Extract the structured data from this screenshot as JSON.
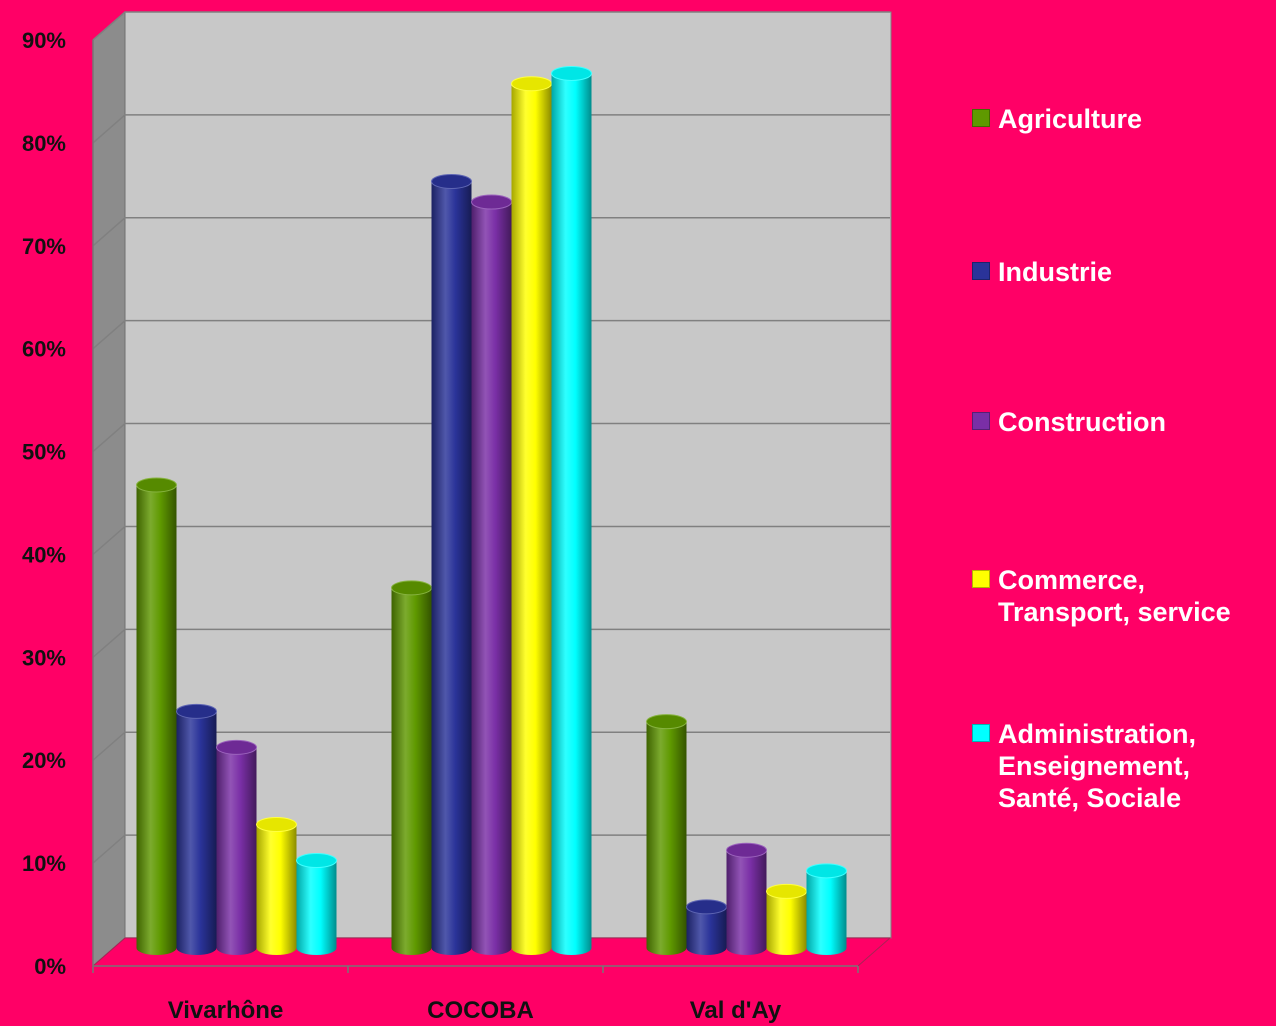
{
  "chart_data": {
    "type": "bar",
    "title": "",
    "xlabel": "",
    "ylabel": "",
    "ylim": [
      0,
      90
    ],
    "yticks": [
      "0%",
      "10%",
      "20%",
      "30%",
      "40%",
      "50%",
      "60%",
      "70%",
      "80%",
      "90%"
    ],
    "categories": [
      "Vivarhône",
      "COCOBA",
      "Val d'Ay"
    ],
    "series": [
      {
        "name": "Agriculture",
        "color": "#5f9900",
        "values": [
          45,
          35,
          22
        ]
      },
      {
        "name": "Industrie",
        "color": "#2a3399",
        "values": [
          23,
          74.5,
          4
        ]
      },
      {
        "name": "Construction",
        "color": "#7a2fa6",
        "values": [
          19.5,
          72.5,
          9.5
        ]
      },
      {
        "name": "Commerce,\nTransport, service",
        "color": "#ffff00",
        "values": [
          12,
          84,
          5.5
        ]
      },
      {
        "name": "Administration,\nEnseignement,\nSanté, Sociale",
        "color": "#00ffff",
        "values": [
          8.5,
          85,
          7.5
        ]
      }
    ],
    "grid": true,
    "legend": "right"
  },
  "colors": {
    "background": "#ff0066",
    "plot_wall": "#c8c8c8",
    "side_wall": "#8c8c8c",
    "floor": "#ff0066",
    "gridline": "#808080"
  }
}
